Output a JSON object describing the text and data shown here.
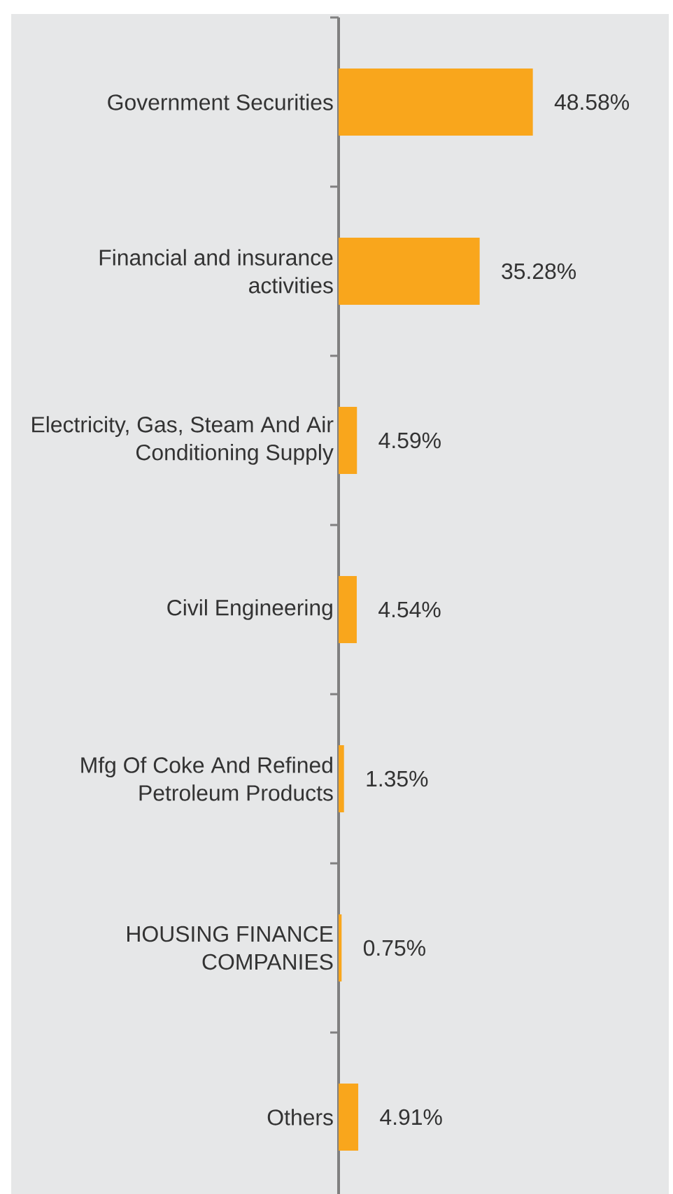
{
  "chart_data": {
    "type": "bar",
    "orientation": "horizontal",
    "categories": [
      "Government Securities",
      "Financial and insurance activities",
      "Electricity, Gas, Steam And Air Conditioning Supply",
      "Civil Engineering",
      "Mfg Of Coke And Refined Petroleum Products",
      "HOUSING FINANCE COMPANIES",
      "Others"
    ],
    "values": [
      48.58,
      35.28,
      4.59,
      4.54,
      1.35,
      0.75,
      4.91
    ],
    "value_labels": [
      "48.58%",
      "35.28%",
      "4.59%",
      "4.54%",
      "1.35%",
      "0.75%",
      "4.91%"
    ],
    "color": "#f9a61c"
  }
}
